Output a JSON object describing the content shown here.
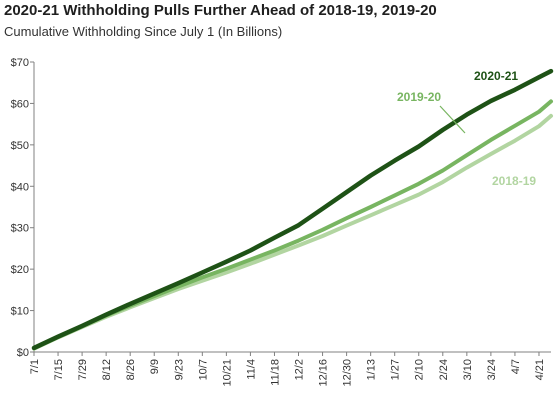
{
  "chart_data": {
    "type": "line",
    "title": "2020-21 Withholding Pulls Further Ahead of 2018-19, 2019-20",
    "subtitle": "Cumulative Withholding Since July 1 (In Billions)",
    "xlabel": "",
    "ylabel": "",
    "ylim": [
      0,
      70
    ],
    "yticks": [
      0,
      10,
      20,
      30,
      40,
      50,
      60,
      70
    ],
    "ytick_labels": [
      "$0",
      "$10",
      "$20",
      "$30",
      "$40",
      "$50",
      "$60",
      "$70"
    ],
    "x_tick_labels": [
      "7/1",
      "7/15",
      "7/29",
      "8/12",
      "8/26",
      "9/9",
      "9/23",
      "10/7",
      "10/21",
      "11/4",
      "11/18",
      "12/2",
      "12/16",
      "12/30",
      "1/13",
      "1/27",
      "2/10",
      "2/24",
      "3/10",
      "3/24",
      "4/7",
      "4/21"
    ],
    "grid": false,
    "legend": "inline labels",
    "series": [
      {
        "name": "2018-19",
        "color": "#b2d5a1",
        "x": [
          "7/1",
          "7/15",
          "7/29",
          "8/12",
          "8/26",
          "9/9",
          "9/23",
          "10/7",
          "10/21",
          "11/4",
          "11/18",
          "12/2",
          "12/16",
          "12/30",
          "1/13",
          "1/27",
          "2/10",
          "2/24",
          "3/10",
          "3/24",
          "4/7",
          "4/21",
          "4/28"
        ],
        "values": [
          0.8,
          3.5,
          6.0,
          8.5,
          10.8,
          13.0,
          15.2,
          17.2,
          19.2,
          21.3,
          23.5,
          25.7,
          28.0,
          30.5,
          33.0,
          35.5,
          38.0,
          41.0,
          44.5,
          47.8,
          51.0,
          54.5,
          57.0
        ]
      },
      {
        "name": "2019-20",
        "color": "#78b561",
        "x": [
          "7/1",
          "7/15",
          "7/29",
          "8/12",
          "8/26",
          "9/9",
          "9/23",
          "10/7",
          "10/21",
          "11/4",
          "11/18",
          "12/2",
          "12/16",
          "12/30",
          "1/13",
          "1/27",
          "2/10",
          "2/24",
          "3/10",
          "3/24",
          "4/7",
          "4/21",
          "4/28"
        ],
        "values": [
          0.9,
          3.6,
          6.2,
          8.8,
          11.2,
          13.5,
          15.8,
          18.0,
          20.1,
          22.3,
          24.5,
          26.9,
          29.5,
          32.3,
          35.0,
          37.8,
          40.6,
          43.8,
          47.5,
          51.2,
          54.6,
          58.0,
          60.5
        ]
      },
      {
        "name": "2020-21",
        "color": "#1e5216",
        "x": [
          "7/1",
          "7/15",
          "7/29",
          "8/12",
          "8/26",
          "9/9",
          "9/23",
          "10/7",
          "10/21",
          "11/4",
          "11/18",
          "12/2",
          "12/16",
          "12/30",
          "1/13",
          "1/27",
          "2/10",
          "2/24",
          "3/10",
          "3/24",
          "4/7",
          "4/21",
          "4/28"
        ],
        "values": [
          1.0,
          3.7,
          6.3,
          9.0,
          11.6,
          14.1,
          16.6,
          19.2,
          21.8,
          24.5,
          27.6,
          30.6,
          34.6,
          38.6,
          42.6,
          46.2,
          49.6,
          53.6,
          57.3,
          60.6,
          63.3,
          66.3,
          67.8
        ]
      }
    ]
  }
}
